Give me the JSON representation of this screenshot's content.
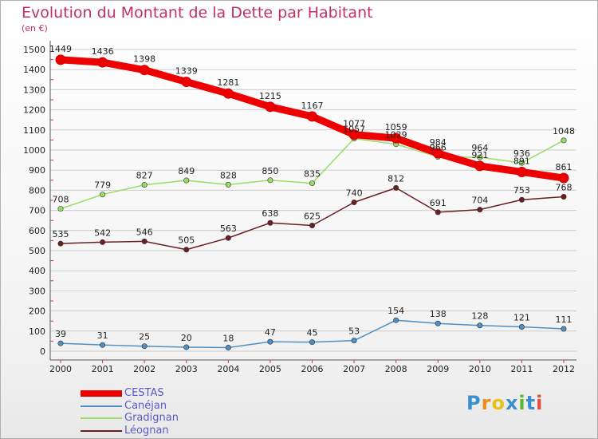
{
  "title": "Evolution du Montant de la Dette par Habitant",
  "unit": "(en €)",
  "logo": "Proxiti",
  "colors": {
    "title": "#c0306a",
    "legend_text": "#5b5bc8",
    "grid": "#cccccc"
  },
  "chart_data": {
    "type": "line",
    "title": "Evolution du Montant de la Dette par Habitant",
    "xlabel": "",
    "ylabel": "(en €)",
    "x": [
      "2000",
      "2001",
      "2002",
      "2003",
      "2004",
      "2005",
      "2006",
      "2007",
      "2008",
      "2009",
      "2010",
      "2011",
      "2012"
    ],
    "ylim": [
      0,
      1500
    ],
    "yticks": [
      0,
      100,
      200,
      300,
      400,
      500,
      600,
      700,
      800,
      900,
      1000,
      1100,
      1200,
      1300,
      1400,
      1500
    ],
    "grid": "horizontal",
    "legend_position": "bottom-left",
    "series": [
      {
        "name": "CESTAS",
        "color": "#ee0000",
        "values": [
          1449,
          1436,
          1398,
          1339,
          1281,
          1215,
          1167,
          1077,
          1059,
          984,
          921,
          891,
          861
        ]
      },
      {
        "name": "Canéjan",
        "color": "#4f8fc4",
        "values": [
          39,
          31,
          25,
          20,
          18,
          47,
          45,
          53,
          154,
          138,
          128,
          121,
          111
        ]
      },
      {
        "name": "Gradignan",
        "color": "#99dd66",
        "values": [
          708,
          779,
          827,
          849,
          828,
          850,
          835,
          1057,
          1029,
          966,
          964,
          936,
          1048
        ]
      },
      {
        "name": "Léognan",
        "color": "#6b1f24",
        "values": [
          535,
          542,
          546,
          505,
          563,
          638,
          625,
          740,
          812,
          691,
          704,
          753,
          768
        ]
      }
    ]
  }
}
